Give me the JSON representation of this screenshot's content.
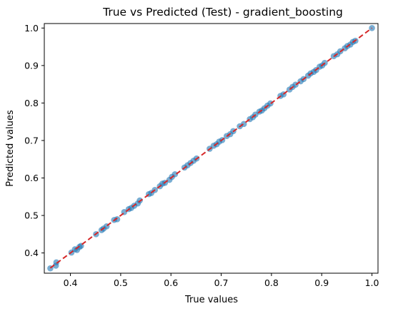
{
  "chart_data": {
    "type": "scatter",
    "title": "True vs Predicted (Test) - gradient_boosting",
    "xlabel": "True values",
    "ylabel": "Predicted values",
    "xlim": [
      0.348,
      1.012
    ],
    "ylim": [
      0.346,
      1.012
    ],
    "xticks": [
      0.4,
      0.5,
      0.6,
      0.7,
      0.8,
      0.9,
      1.0
    ],
    "yticks": [
      0.4,
      0.5,
      0.6,
      0.7,
      0.8,
      0.9,
      1.0
    ],
    "tick_labels_x": [
      "0.4",
      "0.5",
      "0.6",
      "0.7",
      "0.8",
      "0.9",
      "1.0"
    ],
    "tick_labels_y": [
      "0.4",
      "0.5",
      "0.6",
      "0.7",
      "0.8",
      "0.9",
      "1.0"
    ],
    "grid": false,
    "point_color": "#1f77b4",
    "line_color": "#d62728",
    "reference_line": {
      "style": "dashed",
      "from": [
        0.36,
        0.36
      ],
      "to": [
        1.0,
        1.0
      ]
    },
    "points": [
      [
        0.36,
        0.359
      ],
      [
        0.371,
        0.366
      ],
      [
        0.372,
        0.375
      ],
      [
        0.402,
        0.401
      ],
      [
        0.409,
        0.41
      ],
      [
        0.413,
        0.408
      ],
      [
        0.418,
        0.416
      ],
      [
        0.421,
        0.419
      ],
      [
        0.451,
        0.45
      ],
      [
        0.462,
        0.461
      ],
      [
        0.466,
        0.465
      ],
      [
        0.472,
        0.471
      ],
      [
        0.487,
        0.488
      ],
      [
        0.493,
        0.49
      ],
      [
        0.507,
        0.509
      ],
      [
        0.516,
        0.517
      ],
      [
        0.521,
        0.52
      ],
      [
        0.527,
        0.526
      ],
      [
        0.534,
        0.532
      ],
      [
        0.538,
        0.54
      ],
      [
        0.556,
        0.557
      ],
      [
        0.561,
        0.56
      ],
      [
        0.568,
        0.568
      ],
      [
        0.578,
        0.578
      ],
      [
        0.583,
        0.585
      ],
      [
        0.588,
        0.587
      ],
      [
        0.597,
        0.595
      ],
      [
        0.602,
        0.603
      ],
      [
        0.608,
        0.61
      ],
      [
        0.627,
        0.628
      ],
      [
        0.633,
        0.634
      ],
      [
        0.639,
        0.64
      ],
      [
        0.645,
        0.646
      ],
      [
        0.651,
        0.652
      ],
      [
        0.677,
        0.678
      ],
      [
        0.685,
        0.686
      ],
      [
        0.691,
        0.69
      ],
      [
        0.696,
        0.697
      ],
      [
        0.702,
        0.701
      ],
      [
        0.711,
        0.712
      ],
      [
        0.718,
        0.717
      ],
      [
        0.724,
        0.725
      ],
      [
        0.737,
        0.738
      ],
      [
        0.745,
        0.744
      ],
      [
        0.757,
        0.757
      ],
      [
        0.763,
        0.762
      ],
      [
        0.768,
        0.769
      ],
      [
        0.776,
        0.777
      ],
      [
        0.781,
        0.78
      ],
      [
        0.786,
        0.786
      ],
      [
        0.792,
        0.793
      ],
      [
        0.798,
        0.799
      ],
      [
        0.818,
        0.819
      ],
      [
        0.824,
        0.823
      ],
      [
        0.836,
        0.836
      ],
      [
        0.842,
        0.843
      ],
      [
        0.848,
        0.849
      ],
      [
        0.858,
        0.858
      ],
      [
        0.864,
        0.864
      ],
      [
        0.873,
        0.873
      ],
      [
        0.878,
        0.879
      ],
      [
        0.884,
        0.883
      ],
      [
        0.889,
        0.888
      ],
      [
        0.896,
        0.897
      ],
      [
        0.901,
        0.9
      ],
      [
        0.906,
        0.907
      ],
      [
        0.924,
        0.925
      ],
      [
        0.931,
        0.93
      ],
      [
        0.937,
        0.938
      ],
      [
        0.946,
        0.946
      ],
      [
        0.951,
        0.952
      ],
      [
        0.957,
        0.956
      ],
      [
        0.962,
        0.963
      ],
      [
        0.967,
        0.966
      ],
      [
        1.0,
        1.0
      ]
    ]
  }
}
